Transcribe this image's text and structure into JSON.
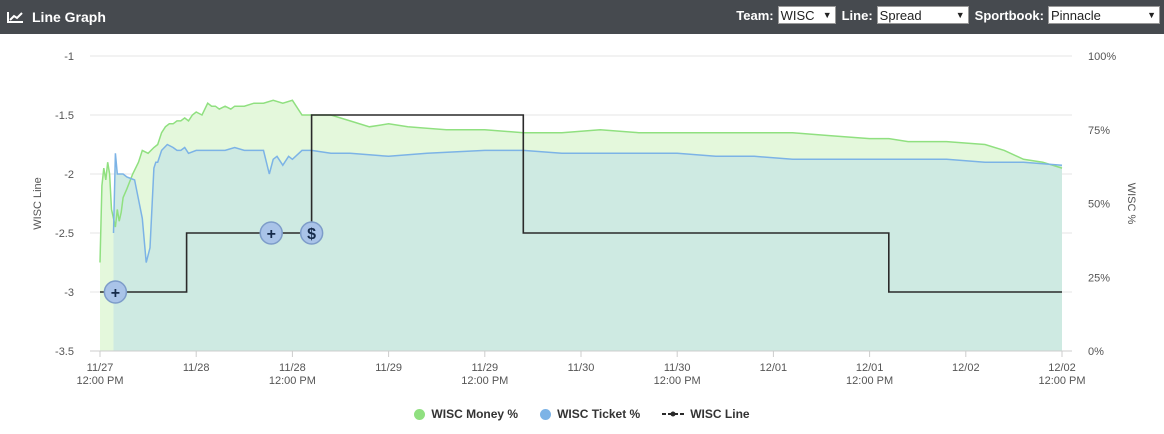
{
  "header": {
    "title": "Line Graph",
    "team_label": "Team:",
    "team_value": "WISC",
    "line_label": "Line:",
    "line_value": "Spread",
    "sportsbook_label": "Sportbook:",
    "sportsbook_value": "Pinnacle"
  },
  "colors": {
    "header_bg": "#464a4f",
    "money": "#90e080",
    "money_fill": "#e4f8dc",
    "ticket": "#7cb3e6",
    "ticket_fill": "#cce9e2",
    "line": "#2a2a2a"
  },
  "chart_data": {
    "type": "line",
    "left_axis_label": "WISC Line",
    "right_axis_label": "WISC %",
    "left_ticks": [
      "-1",
      "-1.5",
      "-2",
      "-2.5",
      "-3",
      "-3.5"
    ],
    "left_ylim": [
      -3.5,
      -1
    ],
    "right_ticks": [
      "100%",
      "75%",
      "50%",
      "25%",
      "0%"
    ],
    "right_ylim": [
      0,
      100
    ],
    "x_ticks": [
      {
        "t": 0,
        "l1": "11/27",
        "l2": "12:00 PM"
      },
      {
        "t": 0.5,
        "l1": "11/28",
        "l2": ""
      },
      {
        "t": 1,
        "l1": "11/28",
        "l2": "12:00 PM"
      },
      {
        "t": 1.5,
        "l1": "11/29",
        "l2": ""
      },
      {
        "t": 2,
        "l1": "11/29",
        "l2": "12:00 PM"
      },
      {
        "t": 2.5,
        "l1": "11/30",
        "l2": ""
      },
      {
        "t": 3,
        "l1": "11/30",
        "l2": "12:00 PM"
      },
      {
        "t": 3.5,
        "l1": "12/01",
        "l2": ""
      },
      {
        "t": 4,
        "l1": "12/01",
        "l2": "12:00 PM"
      },
      {
        "t": 4.5,
        "l1": "12/02",
        "l2": ""
      },
      {
        "t": 5,
        "l1": "12/02",
        "l2": "12:00 PM"
      }
    ],
    "x_range": [
      0,
      5
    ],
    "series": [
      {
        "name": "WISC Money %",
        "color": "#90e080",
        "x": [
          0.0,
          0.01,
          0.02,
          0.03,
          0.04,
          0.05,
          0.06,
          0.07,
          0.08,
          0.09,
          0.1,
          0.11,
          0.12,
          0.14,
          0.17,
          0.2,
          0.22,
          0.25,
          0.28,
          0.3,
          0.32,
          0.34,
          0.36,
          0.38,
          0.4,
          0.42,
          0.44,
          0.46,
          0.48,
          0.5,
          0.53,
          0.56,
          0.58,
          0.6,
          0.62,
          0.65,
          0.68,
          0.7,
          0.75,
          0.8,
          0.85,
          0.9,
          0.95,
          1.0,
          1.05,
          1.1,
          1.15,
          1.2,
          1.3,
          1.4,
          1.5,
          1.6,
          1.8,
          2.0,
          2.2,
          2.4,
          2.6,
          2.8,
          3.0,
          3.2,
          3.4,
          3.6,
          3.8,
          4.0,
          4.1,
          4.2,
          4.4,
          4.6,
          4.7,
          4.8,
          4.9,
          5.0
        ],
        "y": [
          30,
          56,
          62,
          58,
          64,
          60,
          48,
          45,
          42,
          48,
          44,
          47,
          52,
          55,
          60,
          64,
          68,
          67,
          69,
          70,
          74,
          76,
          77,
          77,
          78,
          78,
          79,
          78,
          80,
          81,
          80,
          84,
          83,
          83,
          82,
          83,
          82,
          83,
          83,
          84,
          84,
          85,
          84,
          85,
          80,
          80,
          80,
          80,
          78,
          76,
          77,
          76,
          75,
          75,
          74,
          74,
          75,
          74,
          74,
          74,
          74,
          74,
          73,
          72,
          72,
          71,
          71,
          70,
          68,
          65,
          64,
          62
        ]
      },
      {
        "name": "WISC Ticket %",
        "color": "#7cb3e6",
        "x": [
          0.07,
          0.08,
          0.09,
          0.1,
          0.12,
          0.14,
          0.18,
          0.22,
          0.24,
          0.26,
          0.28,
          0.29,
          0.3,
          0.32,
          0.35,
          0.38,
          0.4,
          0.42,
          0.44,
          0.46,
          0.5,
          0.55,
          0.6,
          0.65,
          0.7,
          0.75,
          0.8,
          0.85,
          0.88,
          0.9,
          0.92,
          0.95,
          0.98,
          1.0,
          1.05,
          1.1,
          1.2,
          1.3,
          1.5,
          1.7,
          2.0,
          2.2,
          2.4,
          2.6,
          2.8,
          3.0,
          3.2,
          3.4,
          3.6,
          3.8,
          4.0,
          4.2,
          4.4,
          4.6,
          4.8,
          5.0
        ],
        "y": [
          40,
          67,
          60,
          60,
          60,
          59,
          58,
          45,
          30,
          35,
          62,
          64,
          64,
          68,
          70,
          69,
          68,
          68,
          69,
          67,
          68,
          68,
          68,
          68,
          69,
          68,
          68,
          68,
          60,
          65,
          66,
          63,
          66,
          65,
          68,
          68,
          67,
          67,
          66,
          67,
          68,
          68,
          67,
          67,
          67,
          67,
          66,
          66,
          65,
          65,
          65,
          65,
          65,
          64,
          64,
          63
        ]
      },
      {
        "name": "WISC Line",
        "color": "#2a2a2a",
        "x": [
          0.0,
          0.45,
          0.45,
          1.1,
          1.1,
          2.2,
          2.2,
          4.1,
          4.1,
          5.0
        ],
        "y": [
          -3.0,
          -3.0,
          -2.5,
          -2.5,
          -1.5,
          -1.5,
          -2.5,
          -2.5,
          -3.0,
          -3.0
        ]
      }
    ],
    "markers": [
      {
        "t": 0.08,
        "y": -3.0,
        "symbol": "+"
      },
      {
        "t": 0.89,
        "y": -2.5,
        "symbol": "+"
      },
      {
        "t": 1.1,
        "y": -2.5,
        "symbol": "$"
      }
    ],
    "legend": {
      "position": "bottom"
    },
    "grid": true
  }
}
